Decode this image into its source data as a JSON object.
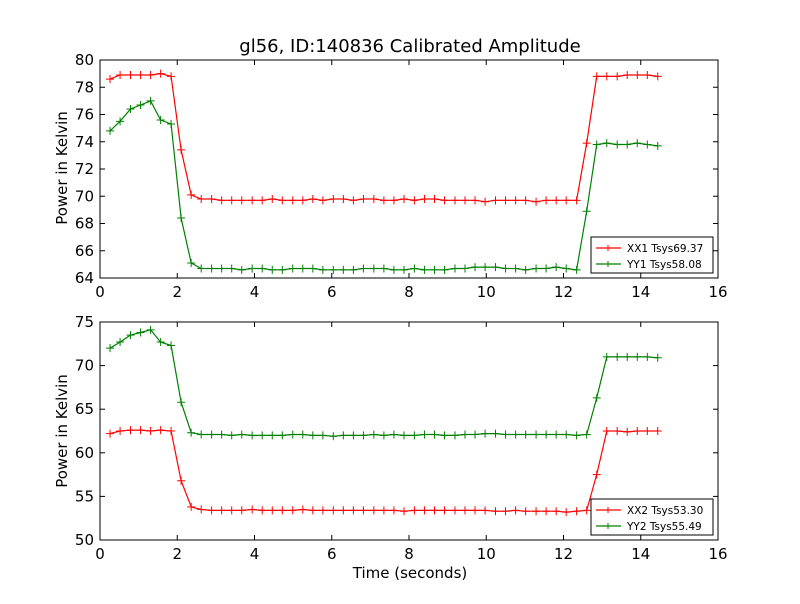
{
  "chart_data": [
    {
      "type": "line",
      "title": "gl56, ID:140836 Calibrated Amplitude",
      "xlabel": "",
      "ylabel": "Power in Kelvin",
      "xlim": [
        0,
        16
      ],
      "ylim": [
        64,
        80
      ],
      "xticks": [
        0,
        2,
        4,
        6,
        8,
        10,
        12,
        14,
        16
      ],
      "yticks": [
        64,
        66,
        68,
        70,
        72,
        74,
        76,
        78,
        80
      ],
      "legend_position": "lower-right",
      "series": [
        {
          "name": "XX1 Tsys69.37",
          "color": "#ff0000",
          "x": [
            0.26,
            0.52,
            0.79,
            1.05,
            1.31,
            1.57,
            1.84,
            2.1,
            2.36,
            2.62,
            2.89,
            3.15,
            3.41,
            3.67,
            3.94,
            4.2,
            4.46,
            4.72,
            4.99,
            5.25,
            5.51,
            5.77,
            6.04,
            6.3,
            6.56,
            6.82,
            7.09,
            7.35,
            7.61,
            7.87,
            8.14,
            8.4,
            8.66,
            8.92,
            9.19,
            9.45,
            9.71,
            9.97,
            10.24,
            10.5,
            10.76,
            11.02,
            11.29,
            11.55,
            11.81,
            12.07,
            12.34,
            12.6,
            12.86,
            13.12,
            13.39,
            13.65,
            13.91,
            14.17,
            14.44
          ],
          "values": [
            78.6,
            78.9,
            78.9,
            78.9,
            78.9,
            79.0,
            78.8,
            73.4,
            70.1,
            69.8,
            69.8,
            69.7,
            69.7,
            69.7,
            69.7,
            69.7,
            69.8,
            69.7,
            69.7,
            69.7,
            69.8,
            69.7,
            69.8,
            69.8,
            69.7,
            69.8,
            69.8,
            69.7,
            69.7,
            69.8,
            69.7,
            69.8,
            69.8,
            69.7,
            69.7,
            69.7,
            69.7,
            69.6,
            69.7,
            69.7,
            69.7,
            69.7,
            69.6,
            69.7,
            69.7,
            69.7,
            69.7,
            73.9,
            78.8,
            78.8,
            78.8,
            78.9,
            78.9,
            78.9,
            78.8
          ]
        },
        {
          "name": "YY1 Tsys58.08",
          "color": "#008000",
          "x": [
            0.26,
            0.52,
            0.79,
            1.05,
            1.31,
            1.57,
            1.84,
            2.1,
            2.36,
            2.62,
            2.89,
            3.15,
            3.41,
            3.67,
            3.94,
            4.2,
            4.46,
            4.72,
            4.99,
            5.25,
            5.51,
            5.77,
            6.04,
            6.3,
            6.56,
            6.82,
            7.09,
            7.35,
            7.61,
            7.87,
            8.14,
            8.4,
            8.66,
            8.92,
            9.19,
            9.45,
            9.71,
            9.97,
            10.24,
            10.5,
            10.76,
            11.02,
            11.29,
            11.55,
            11.81,
            12.07,
            12.34,
            12.6,
            12.86,
            13.12,
            13.39,
            13.65,
            13.91,
            14.17,
            14.44
          ],
          "values": [
            74.8,
            75.5,
            76.4,
            76.7,
            77.0,
            75.6,
            75.3,
            68.4,
            65.1,
            64.7,
            64.7,
            64.7,
            64.7,
            64.6,
            64.7,
            64.7,
            64.6,
            64.6,
            64.7,
            64.7,
            64.7,
            64.6,
            64.6,
            64.6,
            64.6,
            64.7,
            64.7,
            64.7,
            64.6,
            64.6,
            64.7,
            64.6,
            64.6,
            64.6,
            64.7,
            64.7,
            64.8,
            64.8,
            64.8,
            64.7,
            64.7,
            64.6,
            64.7,
            64.7,
            64.8,
            64.7,
            64.6,
            68.9,
            73.8,
            73.9,
            73.8,
            73.8,
            73.9,
            73.8,
            73.7
          ]
        }
      ]
    },
    {
      "type": "line",
      "title": "",
      "xlabel": "Time (seconds)",
      "ylabel": "Power in Kelvin",
      "xlim": [
        0,
        16
      ],
      "ylim": [
        50,
        75
      ],
      "xticks": [
        0,
        2,
        4,
        6,
        8,
        10,
        12,
        14,
        16
      ],
      "yticks": [
        50,
        55,
        60,
        65,
        70,
        75
      ],
      "legend_position": "lower-right",
      "series": [
        {
          "name": "XX2 Tsys53.30",
          "color": "#ff0000",
          "x": [
            0.26,
            0.52,
            0.79,
            1.05,
            1.31,
            1.57,
            1.84,
            2.1,
            2.36,
            2.62,
            2.89,
            3.15,
            3.41,
            3.67,
            3.94,
            4.2,
            4.46,
            4.72,
            4.99,
            5.25,
            5.51,
            5.77,
            6.04,
            6.3,
            6.56,
            6.82,
            7.09,
            7.35,
            7.61,
            7.87,
            8.14,
            8.4,
            8.66,
            8.92,
            9.19,
            9.45,
            9.71,
            9.97,
            10.24,
            10.5,
            10.76,
            11.02,
            11.29,
            11.55,
            11.81,
            12.07,
            12.34,
            12.6,
            12.86,
            13.12,
            13.39,
            13.65,
            13.91,
            14.17,
            14.44
          ],
          "values": [
            62.2,
            62.5,
            62.6,
            62.6,
            62.5,
            62.6,
            62.5,
            56.8,
            53.8,
            53.5,
            53.4,
            53.4,
            53.4,
            53.4,
            53.5,
            53.4,
            53.4,
            53.4,
            53.4,
            53.5,
            53.4,
            53.4,
            53.4,
            53.4,
            53.4,
            53.4,
            53.4,
            53.4,
            53.4,
            53.3,
            53.4,
            53.4,
            53.4,
            53.4,
            53.4,
            53.4,
            53.4,
            53.4,
            53.3,
            53.3,
            53.4,
            53.3,
            53.3,
            53.3,
            53.3,
            53.2,
            53.3,
            53.4,
            57.5,
            62.5,
            62.5,
            62.4,
            62.5,
            62.5,
            62.5
          ]
        },
        {
          "name": "YY2 Tsys55.49",
          "color": "#008000",
          "x": [
            0.26,
            0.52,
            0.79,
            1.05,
            1.31,
            1.57,
            1.84,
            2.1,
            2.36,
            2.62,
            2.89,
            3.15,
            3.41,
            3.67,
            3.94,
            4.2,
            4.46,
            4.72,
            4.99,
            5.25,
            5.51,
            5.77,
            6.04,
            6.3,
            6.56,
            6.82,
            7.09,
            7.35,
            7.61,
            7.87,
            8.14,
            8.4,
            8.66,
            8.92,
            9.19,
            9.45,
            9.71,
            9.97,
            10.24,
            10.5,
            10.76,
            11.02,
            11.29,
            11.55,
            11.81,
            12.07,
            12.34,
            12.6,
            12.86,
            13.12,
            13.39,
            13.65,
            13.91,
            14.17,
            14.44
          ],
          "values": [
            72.0,
            72.7,
            73.5,
            73.8,
            74.1,
            72.7,
            72.3,
            65.8,
            62.3,
            62.1,
            62.1,
            62.1,
            62.0,
            62.1,
            62.0,
            62.0,
            62.0,
            62.0,
            62.1,
            62.1,
            62.0,
            62.0,
            61.9,
            62.0,
            62.0,
            62.0,
            62.1,
            62.0,
            62.1,
            62.0,
            62.0,
            62.1,
            62.1,
            62.0,
            62.0,
            62.1,
            62.1,
            62.2,
            62.2,
            62.1,
            62.1,
            62.1,
            62.1,
            62.1,
            62.1,
            62.1,
            62.0,
            62.1,
            66.3,
            71.0,
            71.0,
            71.0,
            71.0,
            71.0,
            70.9
          ]
        }
      ]
    }
  ]
}
